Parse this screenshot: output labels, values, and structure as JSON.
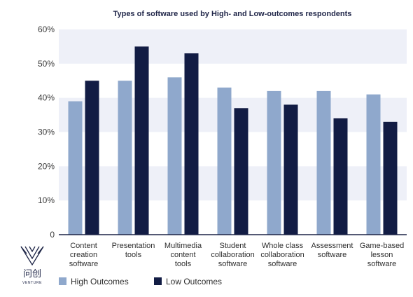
{
  "chart_data": {
    "type": "bar",
    "title": "Types of software used by High- and Low-outcomes respondents",
    "categories": [
      [
        "Content",
        "creation",
        "software"
      ],
      [
        "Presentation",
        "tools"
      ],
      [
        "Multimedia",
        "content",
        "tools"
      ],
      [
        "Student",
        "collaboration",
        "software"
      ],
      [
        "Whole class",
        "collaboration",
        "software"
      ],
      [
        "Assessment",
        "software"
      ],
      [
        "Game-based",
        "lesson",
        "software"
      ]
    ],
    "series": [
      {
        "name": "High Outcomes",
        "values": [
          39,
          45,
          46,
          43,
          42,
          42,
          41
        ]
      },
      {
        "name": "Low Outcomes",
        "values": [
          45,
          55,
          53,
          37,
          38,
          34,
          33
        ]
      }
    ],
    "ylim": [
      0,
      60
    ],
    "yticks": [
      0,
      10,
      20,
      30,
      40,
      50,
      60
    ],
    "ytick_labels": [
      "0",
      "10%",
      "20%",
      "30%",
      "40%",
      "50%",
      "60%"
    ],
    "xlabel": "",
    "ylabel": "",
    "legend_position": "bottom-left",
    "grid": "alternating bands",
    "colors": {
      "high": "#8fa8cc",
      "low": "#121c44",
      "band": "#eef0f8",
      "axis": "#1d2446"
    }
  },
  "logo": {
    "text": "问创",
    "subtext": "VENTURE",
    "icon": "venture-logo-icon"
  }
}
